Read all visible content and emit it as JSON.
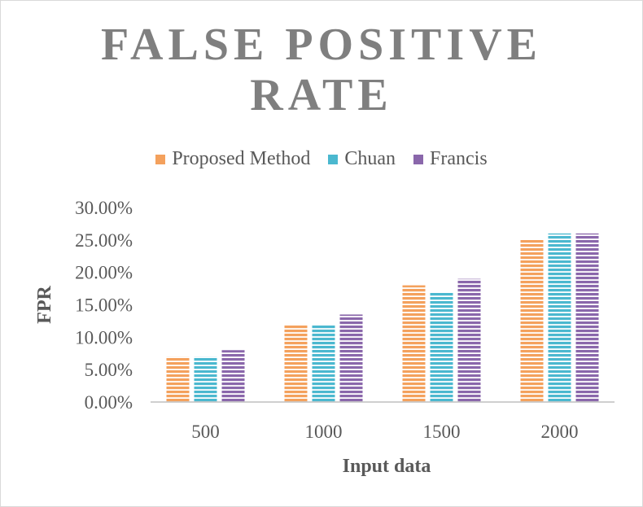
{
  "chart_data": {
    "type": "bar",
    "title_line1": "FALSE POSITIVE",
    "title_line2": "RATE",
    "xlabel": "Input data",
    "ylabel": "FPR",
    "categories": [
      "500",
      "1000",
      "1500",
      "2000"
    ],
    "ylim": [
      0,
      30
    ],
    "yticks": [
      "0.00%",
      "5.00%",
      "10.00%",
      "15.00%",
      "20.00%",
      "25.00%",
      "30.00%"
    ],
    "grid": false,
    "legend_position": "top",
    "series": [
      {
        "name": "Proposed Method",
        "color": "#f4a15d",
        "values": [
          7,
          12,
          18,
          25
        ]
      },
      {
        "name": "Chuan",
        "color": "#4bb8cf",
        "values": [
          7,
          12,
          17,
          26
        ]
      },
      {
        "name": "Francis",
        "color": "#8a67ab",
        "values": [
          8,
          13.5,
          19,
          26
        ]
      }
    ]
  }
}
